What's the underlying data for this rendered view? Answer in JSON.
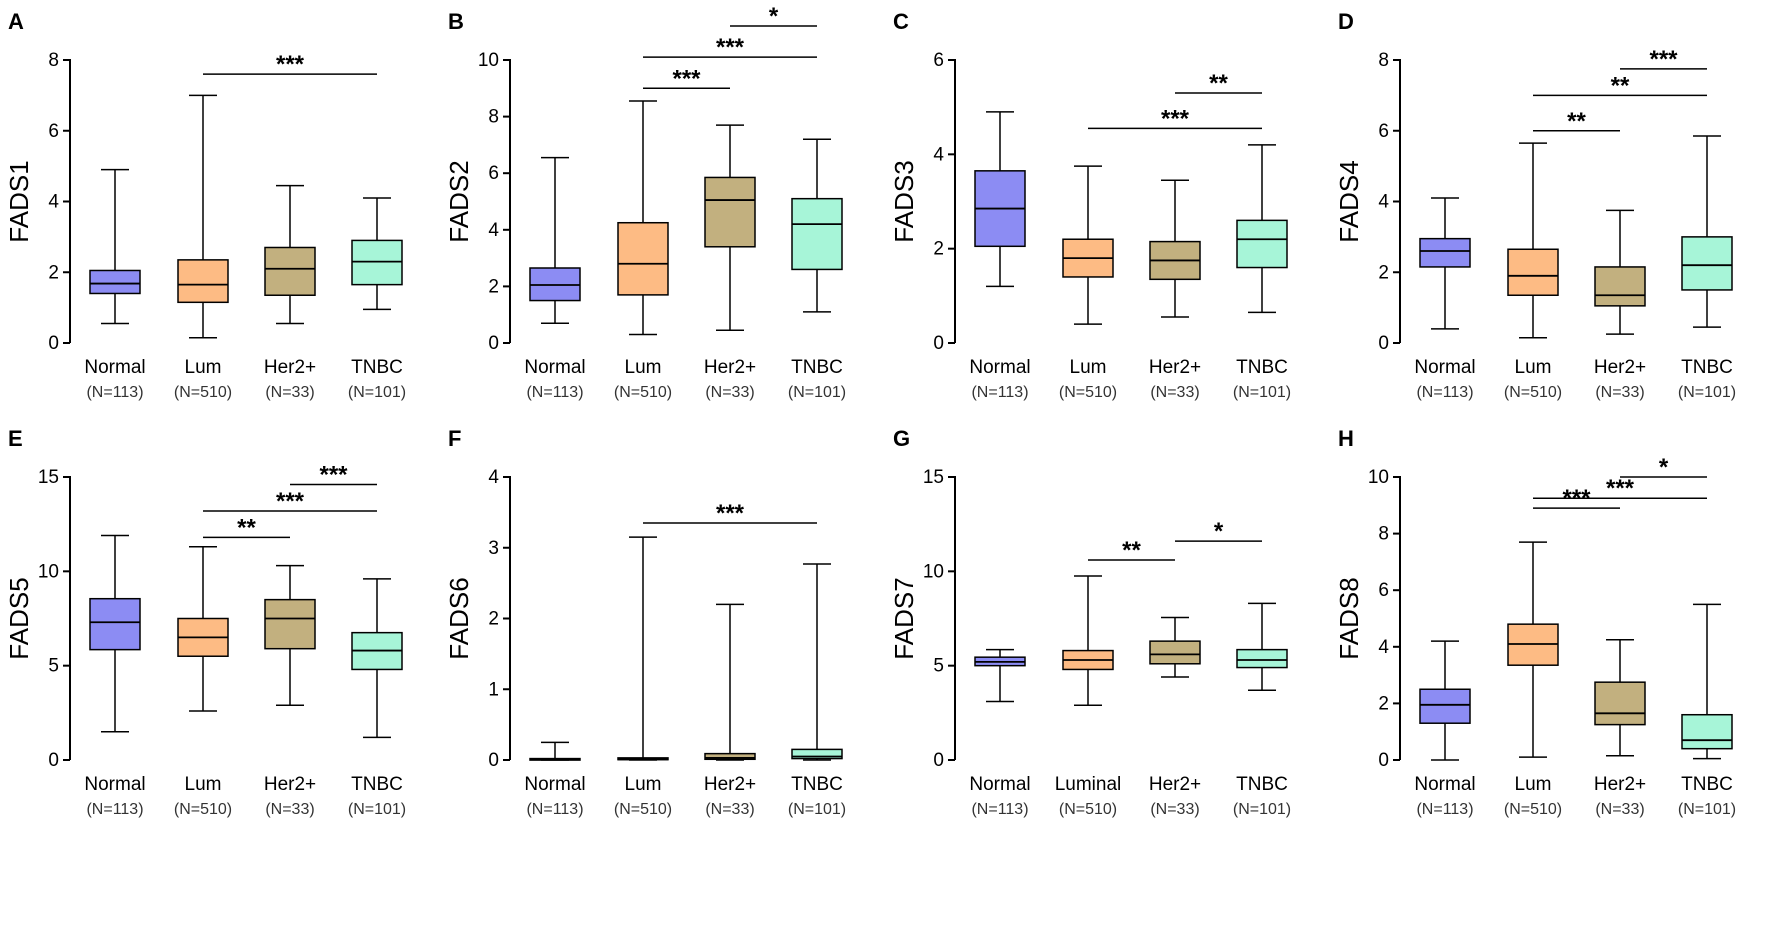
{
  "colors": {
    "Normal": "#8c8cf3",
    "Lum": "#fdbb84",
    "Her2+": "#c2b07f",
    "TNBC": "#a7f5d8",
    "line": "#000000"
  },
  "chart_data": [
    {
      "type": "box",
      "panel": "A",
      "ylabel": "FADS1",
      "ylim": [
        0,
        8
      ],
      "yticks": [
        0,
        2,
        4,
        6,
        8
      ],
      "categories": [
        "Normal",
        "Lum",
        "Her2+",
        "TNBC"
      ],
      "n_labels": [
        "(N=113)",
        "(N=510)",
        "(N=33)",
        "(N=101)"
      ],
      "boxes": [
        {
          "min": 0.55,
          "q1": 1.4,
          "median": 1.68,
          "q3": 2.05,
          "max": 4.9
        },
        {
          "min": 0.15,
          "q1": 1.15,
          "median": 1.65,
          "q3": 2.35,
          "max": 7.0
        },
        {
          "min": 0.55,
          "q1": 1.35,
          "median": 2.1,
          "q3": 2.7,
          "max": 4.45
        },
        {
          "min": 0.95,
          "q1": 1.65,
          "median": 2.3,
          "q3": 2.9,
          "max": 4.1
        }
      ],
      "significance": [
        {
          "from": 1,
          "to": 3,
          "y": 7.6,
          "label": "***"
        }
      ]
    },
    {
      "type": "box",
      "panel": "B",
      "ylabel": "FADS2",
      "ylim": [
        0,
        10
      ],
      "yticks": [
        0,
        2,
        4,
        6,
        8,
        10
      ],
      "categories": [
        "Normal",
        "Lum",
        "Her2+",
        "TNBC"
      ],
      "n_labels": [
        "(N=113)",
        "(N=510)",
        "(N=33)",
        "(N=101)"
      ],
      "boxes": [
        {
          "min": 0.7,
          "q1": 1.5,
          "median": 2.05,
          "q3": 2.65,
          "max": 6.55
        },
        {
          "min": 0.3,
          "q1": 1.7,
          "median": 2.8,
          "q3": 4.25,
          "max": 8.55
        },
        {
          "min": 0.45,
          "q1": 3.4,
          "median": 5.05,
          "q3": 5.85,
          "max": 7.7
        },
        {
          "min": 1.1,
          "q1": 2.6,
          "median": 4.2,
          "q3": 5.1,
          "max": 7.2
        }
      ],
      "significance": [
        {
          "from": 1,
          "to": 2,
          "y": 9.0,
          "label": "***"
        },
        {
          "from": 1,
          "to": 3,
          "y": 10.1,
          "label": "***"
        },
        {
          "from": 2,
          "to": 3,
          "y": 11.2,
          "label": "*"
        }
      ]
    },
    {
      "type": "box",
      "panel": "C",
      "ylabel": "FADS3",
      "ylim": [
        0,
        6
      ],
      "yticks": [
        0,
        2,
        4,
        6
      ],
      "categories": [
        "Normal",
        "Lum",
        "Her2+",
        "TNBC"
      ],
      "n_labels": [
        "(N=113)",
        "(N=510)",
        "(N=33)",
        "(N=101)"
      ],
      "boxes": [
        {
          "min": 1.2,
          "q1": 2.05,
          "median": 2.85,
          "q3": 3.65,
          "max": 4.9
        },
        {
          "min": 0.4,
          "q1": 1.4,
          "median": 1.8,
          "q3": 2.2,
          "max": 3.75
        },
        {
          "min": 0.55,
          "q1": 1.35,
          "median": 1.75,
          "q3": 2.15,
          "max": 3.45
        },
        {
          "min": 0.65,
          "q1": 1.6,
          "median": 2.2,
          "q3": 2.6,
          "max": 4.2
        }
      ],
      "significance": [
        {
          "from": 1,
          "to": 3,
          "y": 4.55,
          "label": "***"
        },
        {
          "from": 2,
          "to": 3,
          "y": 5.3,
          "label": "**"
        }
      ]
    },
    {
      "type": "box",
      "panel": "D",
      "ylabel": "FADS4",
      "ylim": [
        0,
        8
      ],
      "yticks": [
        0,
        2,
        4,
        6,
        8
      ],
      "categories": [
        "Normal",
        "Lum",
        "Her2+",
        "TNBC"
      ],
      "n_labels": [
        "(N=113)",
        "(N=510)",
        "(N=33)",
        "(N=101)"
      ],
      "boxes": [
        {
          "min": 0.4,
          "q1": 2.15,
          "median": 2.6,
          "q3": 2.95,
          "max": 4.1
        },
        {
          "min": 0.15,
          "q1": 1.35,
          "median": 1.9,
          "q3": 2.65,
          "max": 5.65
        },
        {
          "min": 0.25,
          "q1": 1.05,
          "median": 1.35,
          "q3": 2.15,
          "max": 3.75
        },
        {
          "min": 0.45,
          "q1": 1.5,
          "median": 2.2,
          "q3": 3.0,
          "max": 5.85
        }
      ],
      "significance": [
        {
          "from": 1,
          "to": 2,
          "y": 6.0,
          "label": "**"
        },
        {
          "from": 1,
          "to": 3,
          "y": 7.0,
          "label": "**"
        },
        {
          "from": 2,
          "to": 3,
          "y": 7.75,
          "label": "***"
        }
      ]
    },
    {
      "type": "box",
      "panel": "E",
      "ylabel": "FADS5",
      "ylim": [
        0,
        15
      ],
      "yticks": [
        0,
        5,
        10,
        15
      ],
      "categories": [
        "Normal",
        "Lum",
        "Her2+",
        "TNBC"
      ],
      "n_labels": [
        "(N=113)",
        "(N=510)",
        "(N=33)",
        "(N=101)"
      ],
      "boxes": [
        {
          "min": 1.5,
          "q1": 5.85,
          "median": 7.3,
          "q3": 8.55,
          "max": 11.9
        },
        {
          "min": 2.6,
          "q1": 5.5,
          "median": 6.5,
          "q3": 7.5,
          "max": 11.3
        },
        {
          "min": 2.9,
          "q1": 5.9,
          "median": 7.5,
          "q3": 8.5,
          "max": 10.3
        },
        {
          "min": 1.2,
          "q1": 4.8,
          "median": 5.8,
          "q3": 6.75,
          "max": 9.6
        }
      ],
      "significance": [
        {
          "from": 1,
          "to": 2,
          "y": 11.8,
          "label": "**"
        },
        {
          "from": 1,
          "to": 3,
          "y": 13.2,
          "label": "***"
        },
        {
          "from": 2,
          "to": 3,
          "y": 14.6,
          "label": "***"
        }
      ]
    },
    {
      "type": "box",
      "panel": "F",
      "ylabel": "FADS6",
      "ylim": [
        0,
        4
      ],
      "yticks": [
        0,
        1,
        2,
        3,
        4
      ],
      "categories": [
        "Normal",
        "Lum",
        "Her2+",
        "TNBC"
      ],
      "n_labels": [
        "(N=113)",
        "(N=510)",
        "(N=33)",
        "(N=101)"
      ],
      "boxes": [
        {
          "min": 0.0,
          "q1": 0.005,
          "median": 0.01,
          "q3": 0.02,
          "max": 0.25
        },
        {
          "min": 0.0,
          "q1": 0.005,
          "median": 0.01,
          "q3": 0.03,
          "max": 3.15
        },
        {
          "min": 0.0,
          "q1": 0.01,
          "median": 0.03,
          "q3": 0.09,
          "max": 2.2
        },
        {
          "min": 0.0,
          "q1": 0.02,
          "median": 0.05,
          "q3": 0.15,
          "max": 2.77
        }
      ],
      "significance": [
        {
          "from": 1,
          "to": 3,
          "y": 3.35,
          "label": "***"
        }
      ]
    },
    {
      "type": "box",
      "panel": "G",
      "ylabel": "FADS7",
      "ylim": [
        0,
        15
      ],
      "yticks": [
        0,
        5,
        10,
        15
      ],
      "categories": [
        "Normal",
        "Luminal",
        "Her2+",
        "TNBC"
      ],
      "n_labels": [
        "(N=113)",
        "(N=510)",
        "(N=33)",
        "(N=101)"
      ],
      "boxes": [
        {
          "min": 3.1,
          "q1": 5.0,
          "median": 5.2,
          "q3": 5.45,
          "max": 5.85
        },
        {
          "min": 2.9,
          "q1": 4.8,
          "median": 5.3,
          "q3": 5.8,
          "max": 9.75
        },
        {
          "min": 4.4,
          "q1": 5.1,
          "median": 5.6,
          "q3": 6.3,
          "max": 7.55
        },
        {
          "min": 3.7,
          "q1": 4.9,
          "median": 5.3,
          "q3": 5.85,
          "max": 8.3
        }
      ],
      "significance": [
        {
          "from": 1,
          "to": 2,
          "y": 10.6,
          "label": "**"
        },
        {
          "from": 2,
          "to": 3,
          "y": 11.6,
          "label": "*"
        }
      ]
    },
    {
      "type": "box",
      "panel": "H",
      "ylabel": "FADS8",
      "ylim": [
        0,
        10
      ],
      "yticks": [
        0,
        2,
        4,
        6,
        8,
        10
      ],
      "categories": [
        "Normal",
        "Lum",
        "Her2+",
        "TNBC"
      ],
      "n_labels": [
        "(N=113)",
        "(N=510)",
        "(N=33)",
        "(N=101)"
      ],
      "boxes": [
        {
          "min": 0.0,
          "q1": 1.3,
          "median": 1.95,
          "q3": 2.5,
          "max": 4.2
        },
        {
          "min": 0.1,
          "q1": 3.35,
          "median": 4.1,
          "q3": 4.8,
          "max": 7.7
        },
        {
          "min": 0.15,
          "q1": 1.25,
          "median": 1.65,
          "q3": 2.75,
          "max": 4.25
        },
        {
          "min": 0.05,
          "q1": 0.4,
          "median": 0.7,
          "q3": 1.6,
          "max": 5.5
        }
      ],
      "significance": [
        {
          "from": 1,
          "to": 2,
          "y": 8.9,
          "label": "***"
        },
        {
          "from": 1,
          "to": 3,
          "y": 9.25,
          "label": "***"
        },
        {
          "from": 2,
          "to": 3,
          "y": 10.0,
          "label": "*"
        }
      ]
    }
  ]
}
